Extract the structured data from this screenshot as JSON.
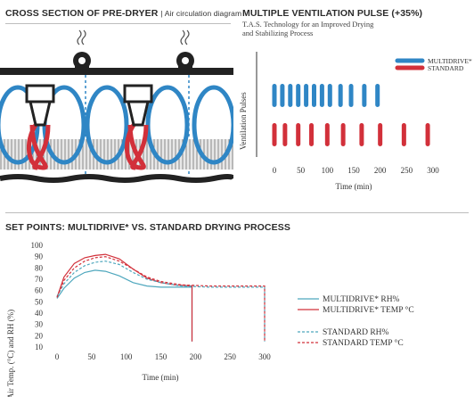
{
  "cross_section": {
    "title": "CROSS SECTION OF PRE-DRYER",
    "subtitle": "Air circulation diagram"
  },
  "pulse_panel": {
    "title": "MULTIPLE VENTILATION PULSE (+35%)",
    "subtitle_line1": "T.A.S. Technology for an Improved Drying",
    "subtitle_line2": "and Stabilizing Process"
  },
  "setpoint_panel": {
    "title": "SET POINTS: MULTIDRIVE* VS. STANDARD DRYING PROCESS"
  },
  "colors": {
    "blue": "#2f86c5",
    "red": "#d2303a",
    "cyan": "#4ea7bd",
    "dark": "#2b2b2b"
  },
  "chart_data": [
    {
      "type": "bar",
      "ylabel": "Ventilation Pulses",
      "xlabel": "Time (min)",
      "xticks": [
        0,
        50,
        100,
        150,
        200,
        250,
        300
      ],
      "xlim": [
        0,
        300
      ],
      "legend": [
        "MULTIDRIVE*",
        "STANDARD"
      ],
      "legend_position": "top-right",
      "series": [
        {
          "name": "MULTIDRIVE*",
          "color": "#2f86c5",
          "x": [
            0,
            15,
            30,
            45,
            60,
            75,
            90,
            105,
            125,
            145,
            170,
            195
          ]
        },
        {
          "name": "STANDARD",
          "color": "#d2303a",
          "x": [
            0,
            20,
            45,
            70,
            100,
            130,
            165,
            200,
            245,
            290
          ]
        }
      ]
    },
    {
      "type": "line",
      "ylabel": "Air Temp. (°C) and RH (%)",
      "xlabel": "Time (min)",
      "xticks": [
        0,
        50,
        100,
        150,
        200,
        250,
        300
      ],
      "yticks": [
        10,
        20,
        30,
        40,
        50,
        60,
        70,
        80,
        90,
        100
      ],
      "xlim": [
        0,
        300
      ],
      "ylim": [
        10,
        100
      ],
      "legend_position": "bottom-right",
      "series": [
        {
          "name": "MULTIDRIVE* RH%",
          "color": "#4ea7bd",
          "style": "solid",
          "points": [
            [
              0,
              53
            ],
            [
              10,
              62
            ],
            [
              25,
              71
            ],
            [
              40,
              76
            ],
            [
              55,
              78
            ],
            [
              70,
              77
            ],
            [
              90,
              73
            ],
            [
              110,
              67
            ],
            [
              130,
              64
            ],
            [
              150,
              63
            ],
            [
              195,
              63
            ],
            [
              195,
              15
            ]
          ]
        },
        {
          "name": "MULTIDRIVE* TEMP °C",
          "color": "#d2303a",
          "style": "solid",
          "points": [
            [
              0,
              54
            ],
            [
              10,
              72
            ],
            [
              25,
              84
            ],
            [
              40,
              89
            ],
            [
              55,
              91
            ],
            [
              70,
              92
            ],
            [
              90,
              88
            ],
            [
              110,
              79
            ],
            [
              130,
              71
            ],
            [
              150,
              67
            ],
            [
              170,
              65
            ],
            [
              195,
              64
            ],
            [
              195,
              15
            ]
          ]
        },
        {
          "name": "STANDARD RH%",
          "color": "#4ea7bd",
          "style": "dashed",
          "points": [
            [
              0,
              55
            ],
            [
              10,
              66
            ],
            [
              25,
              76
            ],
            [
              40,
              82
            ],
            [
              55,
              85
            ],
            [
              70,
              86
            ],
            [
              90,
              83
            ],
            [
              110,
              76
            ],
            [
              130,
              70
            ],
            [
              150,
              67
            ],
            [
              180,
              64
            ],
            [
              220,
              63
            ],
            [
              300,
              63
            ],
            [
              300,
              15
            ]
          ]
        },
        {
          "name": "STANDARD TEMP °C",
          "color": "#d2303a",
          "style": "dashed",
          "points": [
            [
              0,
              54
            ],
            [
              10,
              69
            ],
            [
              25,
              80
            ],
            [
              40,
              86
            ],
            [
              55,
              89
            ],
            [
              70,
              90
            ],
            [
              90,
              86
            ],
            [
              110,
              79
            ],
            [
              130,
              72
            ],
            [
              150,
              68
            ],
            [
              180,
              65
            ],
            [
              220,
              64
            ],
            [
              300,
              64
            ],
            [
              300,
              15
            ]
          ]
        }
      ]
    }
  ]
}
